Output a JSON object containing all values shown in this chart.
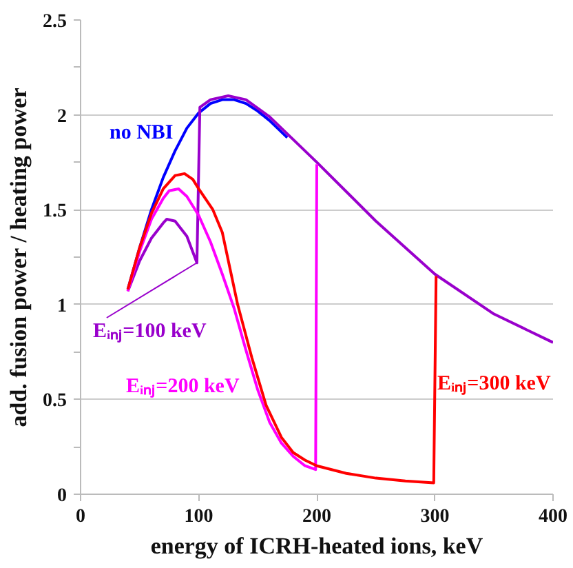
{
  "chart_data": {
    "type": "line",
    "xlabel": "energy of ICRH-heated ions, keV",
    "ylabel": "add. fusion power / heating power",
    "xlim": [
      0,
      400
    ],
    "ylim": [
      0,
      2.5
    ],
    "xticks": [
      0,
      100,
      200,
      300,
      400
    ],
    "yticks": [
      0,
      {
        "value": 0.25,
        "label": null
      },
      0.5,
      {
        "value": 0.75,
        "label": null
      },
      1,
      {
        "value": 1.25,
        "label": null
      },
      1.5,
      {
        "value": 1.75,
        "label": null
      },
      2,
      {
        "value": 2.25,
        "label": null
      },
      2.5
    ],
    "grid": "y",
    "line_style": "solid",
    "marker": "none",
    "series": [
      {
        "name": "no NBI",
        "color": "#0000ff",
        "x": [
          40,
          50,
          60,
          70,
          80,
          90,
          100,
          110,
          120,
          130,
          140,
          150,
          160,
          175
        ],
        "values": [
          1.08,
          1.3,
          1.5,
          1.67,
          1.81,
          1.93,
          2.01,
          2.06,
          2.08,
          2.08,
          2.06,
          2.02,
          1.97,
          1.88
        ]
      },
      {
        "name": "Eᵢₙⱼ=100 keV",
        "color": "#9900cc",
        "x": [
          40,
          50,
          60,
          70,
          73,
          80,
          90,
          98.5,
          101,
          110,
          125,
          140,
          160,
          200,
          250,
          300,
          350,
          400
        ],
        "values": [
          1.07,
          1.23,
          1.35,
          1.43,
          1.45,
          1.44,
          1.36,
          1.22,
          2.04,
          2.08,
          2.1,
          2.08,
          1.99,
          1.75,
          1.44,
          1.16,
          0.95,
          0.8
        ]
      },
      {
        "name": "Eᵢₙⱼ=200 keV",
        "color": "#ff00ff",
        "x": [
          40,
          50,
          60,
          70,
          75,
          83,
          90,
          100,
          110,
          120,
          130,
          140,
          150,
          160,
          170,
          180,
          190,
          199,
          200
        ],
        "values": [
          1.07,
          1.28,
          1.45,
          1.56,
          1.6,
          1.61,
          1.57,
          1.47,
          1.33,
          1.16,
          0.98,
          0.76,
          0.55,
          0.38,
          0.27,
          0.2,
          0.15,
          0.13,
          1.74
        ]
      },
      {
        "name": "Eᵢₙⱼ=300 keV",
        "color": "#ff0000",
        "x": [
          40,
          50,
          60,
          70,
          80,
          88,
          95,
          100,
          112,
          120,
          133,
          145,
          157,
          170,
          180,
          190,
          200,
          225,
          250,
          275,
          299,
          301
        ],
        "values": [
          1.08,
          1.3,
          1.48,
          1.61,
          1.68,
          1.69,
          1.66,
          1.61,
          1.5,
          1.38,
          1.0,
          0.72,
          0.47,
          0.3,
          0.22,
          0.18,
          0.15,
          0.11,
          0.085,
          0.07,
          0.06,
          1.15
        ]
      }
    ]
  }
}
